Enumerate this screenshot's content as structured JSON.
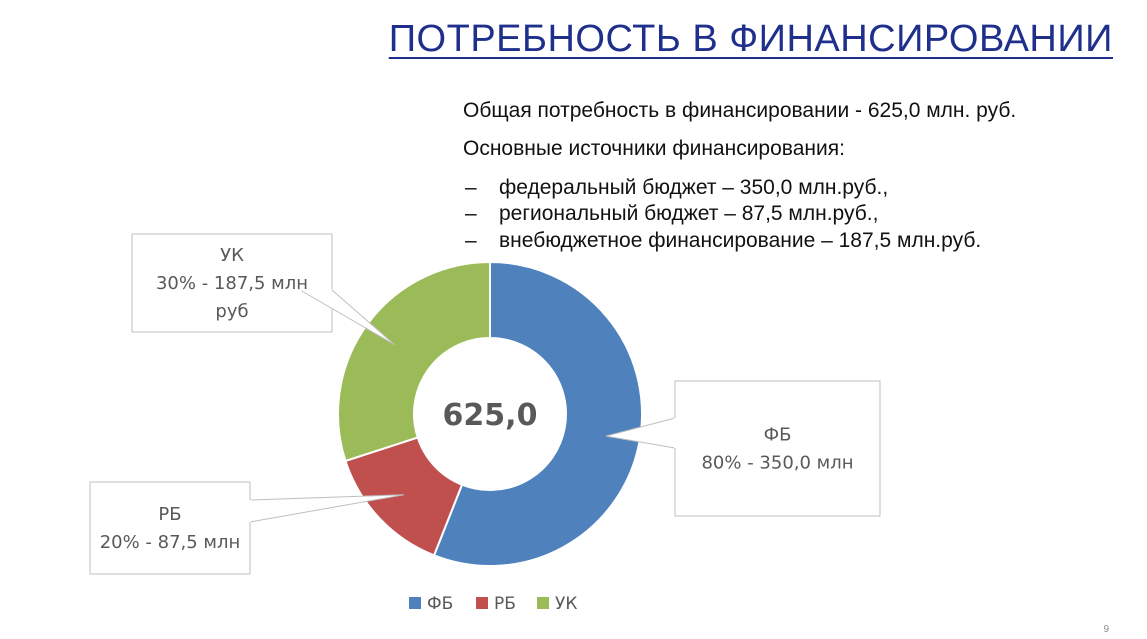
{
  "slide": {
    "title": "ПОТРЕБНОСТЬ В ФИНАНСИРОВАНИИ",
    "total_line": "Общая потребность в финансировании - 625,0 млн. руб.",
    "sources_heading": "Основные источники финансирования:",
    "bullet_marker": "–",
    "sources": [
      "федеральный бюджет – 350,0 млн.руб.,",
      "региональный бюджет – 87,5 млн.руб.,",
      "внебюджетное финансирование – 187,5 млн.руб."
    ],
    "page_number": "9"
  },
  "chart_data": {
    "type": "pie",
    "variant": "doughnut",
    "center_label": "625,0",
    "categories": [
      "ФБ",
      "РБ",
      "УК"
    ],
    "values": [
      350.0,
      87.5,
      187.5
    ],
    "colors": [
      "#4f81bd",
      "#c0504d",
      "#9bbb59"
    ],
    "callouts": [
      {
        "category": "ФБ",
        "lines": [
          "ФБ",
          "80% - 350,0 млн"
        ]
      },
      {
        "category": "РБ",
        "lines": [
          "РБ",
          "20% - 87,5 млн"
        ]
      },
      {
        "category": "УК",
        "lines": [
          "УК",
          "30% - 187,5 млн",
          "руб"
        ]
      }
    ],
    "legend": {
      "position": "bottom",
      "entries": [
        "ФБ",
        "РБ",
        "УК"
      ]
    }
  }
}
